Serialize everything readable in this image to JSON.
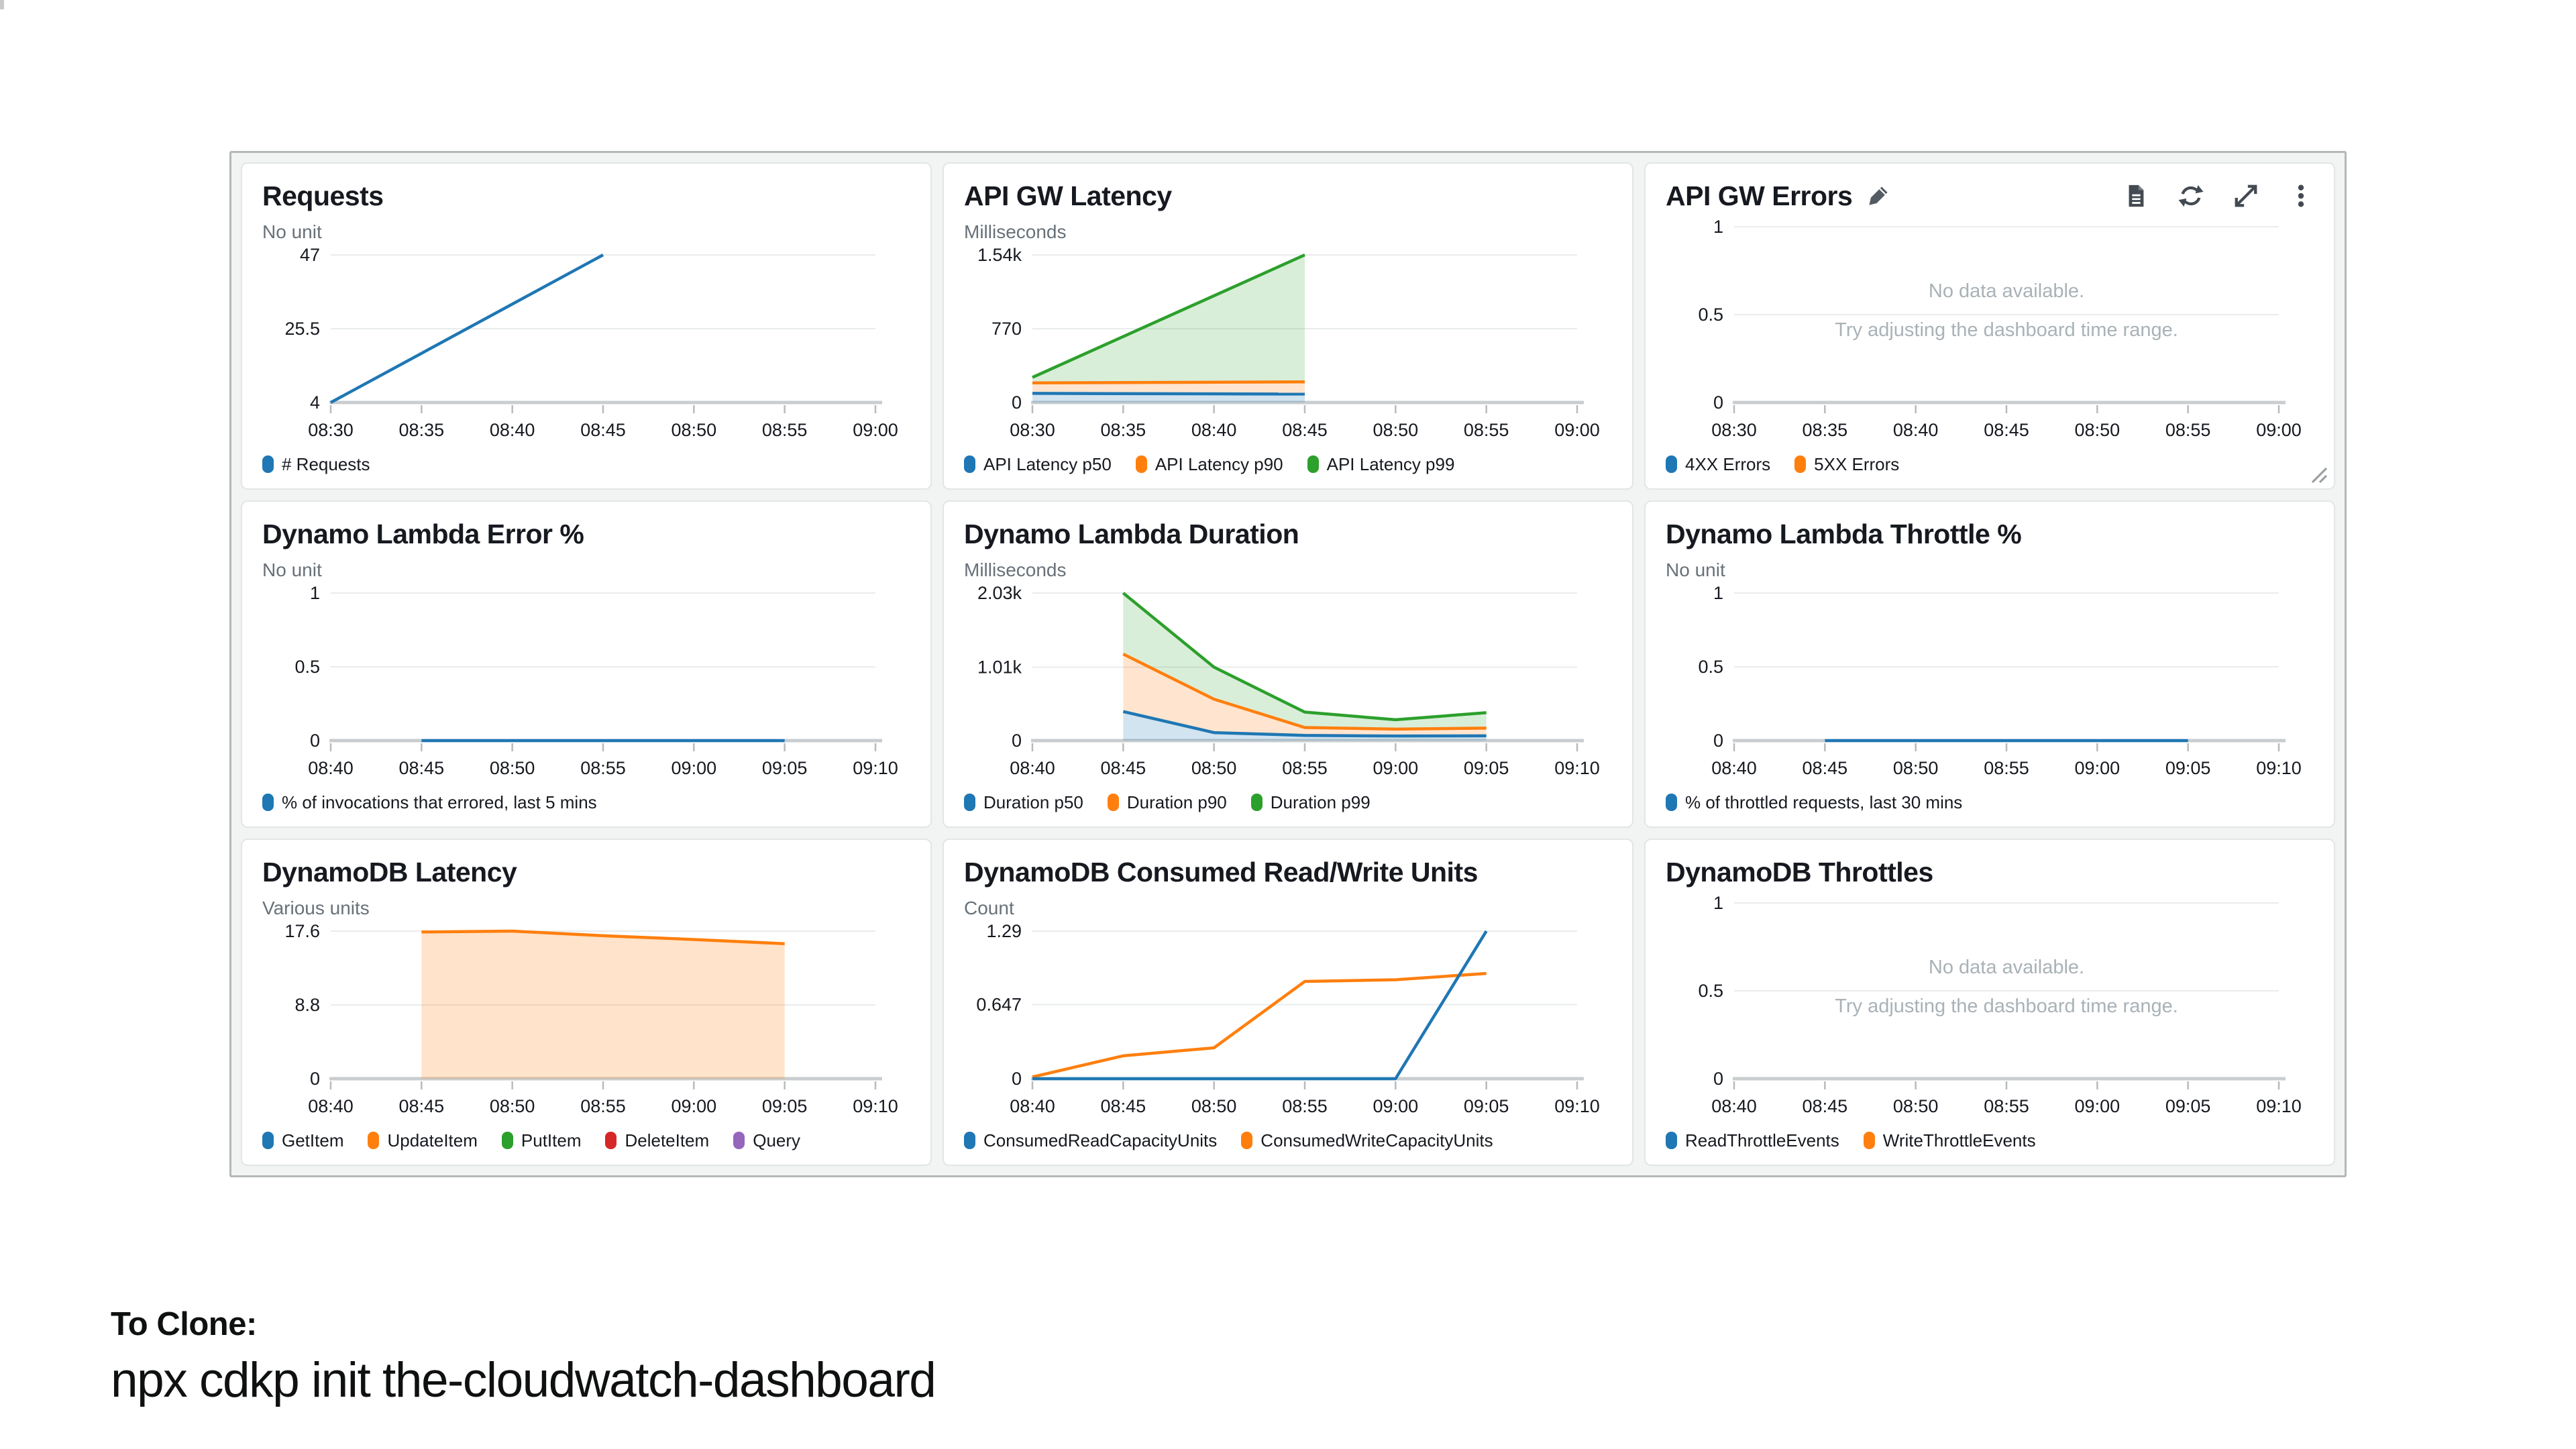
{
  "page": {
    "clone_heading": "To Clone:",
    "clone_command": "npx cdkp init the-cloudwatch-dashboard"
  },
  "colors": {
    "series_blue": "#1f77b4",
    "series_orange": "#ff7f0e",
    "series_green": "#2ca02c",
    "series_red": "#d62728",
    "series_purple": "#9467bd",
    "dashboard_background": "#f2f3f3",
    "panel_background": "#ffffff"
  },
  "icons": [
    "pencil-icon",
    "document-icon",
    "refresh-icon",
    "expand-icon",
    "ellipsis-icon",
    "resize-handle"
  ],
  "panels": [
    {
      "title": "Requests",
      "unit": "No unit",
      "x_ticks": [
        "08:30",
        "08:35",
        "08:40",
        "08:45",
        "08:50",
        "08:55",
        "09:00"
      ],
      "ymin": 4,
      "ymax": 47,
      "y_ticks": [
        {
          "value": 4,
          "label": "4"
        },
        {
          "value": 25.5,
          "label": "25.5"
        },
        {
          "value": 47,
          "label": "47"
        }
      ],
      "series": [
        {
          "name": "# Requests",
          "color": "#1f77b4",
          "fill": "none",
          "fill_color": "none",
          "points": [
            [
              "08:30",
              4
            ],
            [
              "08:45",
              47
            ]
          ]
        }
      ],
      "legend": [
        {
          "label": "# Requests",
          "color": "#1f77b4"
        }
      ]
    },
    {
      "title": "API GW Latency",
      "unit": "Milliseconds",
      "x_ticks": [
        "08:30",
        "08:35",
        "08:40",
        "08:45",
        "08:50",
        "08:55",
        "09:00"
      ],
      "ymin": 0,
      "ymax": 1540,
      "y_ticks": [
        {
          "value": 0,
          "label": "0"
        },
        {
          "value": 770,
          "label": "770"
        },
        {
          "value": 1540,
          "label": "1.54k"
        }
      ],
      "series": [
        {
          "name": "API Latency p50",
          "color": "#1f77b4",
          "fill": "tozero",
          "fill_color": "rgba(31,119,180,0.20)",
          "points": [
            [
              "08:30",
              95
            ],
            [
              "08:45",
              88
            ]
          ]
        },
        {
          "name": "API Latency p90",
          "color": "#ff7f0e",
          "fill": "toprev",
          "fill_color": "rgba(255,127,14,0.20)",
          "points": [
            [
              "08:30",
              205
            ],
            [
              "08:45",
              215
            ]
          ]
        },
        {
          "name": "API Latency p99",
          "color": "#2ca02c",
          "fill": "toprev",
          "fill_color": "rgba(44,160,44,0.18)",
          "points": [
            [
              "08:30",
              262
            ],
            [
              "08:45",
              1540
            ]
          ]
        }
      ],
      "legend": [
        {
          "label": "API Latency p50",
          "color": "#1f77b4"
        },
        {
          "label": "API Latency p90",
          "color": "#ff7f0e"
        },
        {
          "label": "API Latency p99",
          "color": "#2ca02c"
        }
      ]
    },
    {
      "title": "API GW Errors",
      "unit": "",
      "x_ticks": [
        "08:30",
        "08:35",
        "08:40",
        "08:45",
        "08:50",
        "08:55",
        "09:00"
      ],
      "ymin": 0,
      "ymax": 1,
      "y_ticks": [
        {
          "value": 0,
          "label": "0"
        },
        {
          "value": 0.5,
          "label": "0.5"
        },
        {
          "value": 1,
          "label": "1"
        }
      ],
      "series": [],
      "no_data": {
        "line1": "No data available.",
        "line2": "Try adjusting the dashboard time range."
      },
      "legend": [
        {
          "label": "4XX Errors",
          "color": "#1f77b4"
        },
        {
          "label": "5XX Errors",
          "color": "#ff7f0e"
        }
      ]
    },
    {
      "title": "Dynamo Lambda Error %",
      "unit": "No unit",
      "x_ticks": [
        "08:40",
        "08:45",
        "08:50",
        "08:55",
        "09:00",
        "09:05",
        "09:10"
      ],
      "ymin": 0,
      "ymax": 1,
      "y_ticks": [
        {
          "value": 0,
          "label": "0"
        },
        {
          "value": 0.5,
          "label": "0.5"
        },
        {
          "value": 1,
          "label": "1"
        }
      ],
      "series": [
        {
          "name": "% of invocations that errored, last 5 mins",
          "color": "#1f77b4",
          "fill": "none",
          "fill_color": "none",
          "points": [
            [
              "08:45",
              0
            ],
            [
              "09:05",
              0
            ]
          ]
        }
      ],
      "legend": [
        {
          "label": "% of invocations that errored, last 5 mins",
          "color": "#1f77b4"
        }
      ]
    },
    {
      "title": "Dynamo Lambda Duration",
      "unit": "Milliseconds",
      "x_ticks": [
        "08:40",
        "08:45",
        "08:50",
        "08:55",
        "09:00",
        "09:05",
        "09:10"
      ],
      "ymin": 0,
      "ymax": 2030,
      "y_ticks": [
        {
          "value": 0,
          "label": "0"
        },
        {
          "value": 1010,
          "label": "1.01k"
        },
        {
          "value": 2030,
          "label": "2.03k"
        }
      ],
      "series": [
        {
          "name": "Duration p50",
          "color": "#1f77b4",
          "fill": "tozero",
          "fill_color": "rgba(31,119,180,0.20)",
          "points": [
            [
              "08:45",
              400
            ],
            [
              "08:50",
              110
            ],
            [
              "08:55",
              72
            ],
            [
              "09:00",
              63
            ],
            [
              "09:05",
              66
            ]
          ]
        },
        {
          "name": "Duration p90",
          "color": "#ff7f0e",
          "fill": "toprev",
          "fill_color": "rgba(255,127,14,0.20)",
          "points": [
            [
              "08:45",
              1190
            ],
            [
              "08:50",
              570
            ],
            [
              "08:55",
              180
            ],
            [
              "09:00",
              158
            ],
            [
              "09:05",
              172
            ]
          ]
        },
        {
          "name": "Duration p99",
          "color": "#2ca02c",
          "fill": "toprev",
          "fill_color": "rgba(44,160,44,0.18)",
          "points": [
            [
              "08:45",
              2030
            ],
            [
              "08:50",
              1010
            ],
            [
              "08:55",
              392
            ],
            [
              "09:00",
              287
            ],
            [
              "09:05",
              384
            ]
          ]
        }
      ],
      "legend": [
        {
          "label": "Duration p50",
          "color": "#1f77b4"
        },
        {
          "label": "Duration p90",
          "color": "#ff7f0e"
        },
        {
          "label": "Duration p99",
          "color": "#2ca02c"
        }
      ]
    },
    {
      "title": "Dynamo Lambda Throttle %",
      "unit": "No unit",
      "x_ticks": [
        "08:40",
        "08:45",
        "08:50",
        "08:55",
        "09:00",
        "09:05",
        "09:10"
      ],
      "ymin": 0,
      "ymax": 1,
      "y_ticks": [
        {
          "value": 0,
          "label": "0"
        },
        {
          "value": 0.5,
          "label": "0.5"
        },
        {
          "value": 1,
          "label": "1"
        }
      ],
      "series": [
        {
          "name": "% of throttled requests, last 30 mins",
          "color": "#1f77b4",
          "fill": "none",
          "fill_color": "none",
          "points": [
            [
              "08:45",
              0
            ],
            [
              "09:05",
              0
            ]
          ]
        }
      ],
      "legend": [
        {
          "label": "% of throttled requests, last 30 mins",
          "color": "#1f77b4"
        }
      ]
    },
    {
      "title": "DynamoDB Latency",
      "unit": "Various units",
      "x_ticks": [
        "08:40",
        "08:45",
        "08:50",
        "08:55",
        "09:00",
        "09:05",
        "09:10"
      ],
      "ymin": 0,
      "ymax": 17.6,
      "y_ticks": [
        {
          "value": 0,
          "label": "0"
        },
        {
          "value": 8.8,
          "label": "8.8"
        },
        {
          "value": 17.6,
          "label": "17.6"
        }
      ],
      "series": [
        {
          "name": "UpdateItem",
          "color": "#ff7f0e",
          "fill": "tozero",
          "fill_color": "rgba(255,127,14,0.22)",
          "points": [
            [
              "08:45",
              17.5
            ],
            [
              "08:50",
              17.6
            ],
            [
              "08:55",
              17.05
            ],
            [
              "09:00",
              16.6
            ],
            [
              "09:05",
              16.1
            ]
          ]
        }
      ],
      "legend": [
        {
          "label": "GetItem",
          "color": "#1f77b4"
        },
        {
          "label": "UpdateItem",
          "color": "#ff7f0e"
        },
        {
          "label": "PutItem",
          "color": "#2ca02c"
        },
        {
          "label": "DeleteItem",
          "color": "#d62728"
        },
        {
          "label": "Query",
          "color": "#9467bd"
        }
      ]
    },
    {
      "title": "DynamoDB Consumed Read/Write Units",
      "unit": "Count",
      "x_ticks": [
        "08:40",
        "08:45",
        "08:50",
        "08:55",
        "09:00",
        "09:05",
        "09:10"
      ],
      "ymin": 0,
      "ymax": 1.29,
      "y_ticks": [
        {
          "value": 0,
          "label": "0"
        },
        {
          "value": 0.647,
          "label": "0.647"
        },
        {
          "value": 1.29,
          "label": "1.29"
        }
      ],
      "series": [
        {
          "name": "ConsumedWriteCapacityUnits",
          "color": "#ff7f0e",
          "fill": "none",
          "fill_color": "none",
          "points": [
            [
              "08:40",
              0.015
            ],
            [
              "08:45",
              0.2
            ],
            [
              "08:50",
              0.27
            ],
            [
              "08:55",
              0.85
            ],
            [
              "09:00",
              0.865
            ],
            [
              "09:05",
              0.92
            ]
          ]
        },
        {
          "name": "ConsumedReadCapacityUnits",
          "color": "#1f77b4",
          "fill": "none",
          "fill_color": "none",
          "points": [
            [
              "08:40",
              0
            ],
            [
              "08:45",
              0
            ],
            [
              "08:50",
              0
            ],
            [
              "08:55",
              0
            ],
            [
              "09:00",
              0
            ],
            [
              "09:05",
              1.29
            ]
          ]
        }
      ],
      "legend": [
        {
          "label": "ConsumedReadCapacityUnits",
          "color": "#1f77b4"
        },
        {
          "label": "ConsumedWriteCapacityUnits",
          "color": "#ff7f0e"
        }
      ]
    },
    {
      "title": "DynamoDB Throttles",
      "unit": "",
      "x_ticks": [
        "08:40",
        "08:45",
        "08:50",
        "08:55",
        "09:00",
        "09:05",
        "09:10"
      ],
      "ymin": 0,
      "ymax": 1,
      "y_ticks": [
        {
          "value": 0,
          "label": "0"
        },
        {
          "value": 0.5,
          "label": "0.5"
        },
        {
          "value": 1,
          "label": "1"
        }
      ],
      "series": [],
      "no_data": {
        "line1": "No data available.",
        "line2": "Try adjusting the dashboard time range."
      },
      "legend": [
        {
          "label": "ReadThrottleEvents",
          "color": "#1f77b4"
        },
        {
          "label": "WriteThrottleEvents",
          "color": "#ff7f0e"
        }
      ]
    }
  ],
  "chart_data": [
    {
      "type": "line",
      "title": "Requests",
      "ylabel": "No unit",
      "x": [
        "08:30",
        "08:45"
      ],
      "series": [
        {
          "name": "# Requests",
          "values": [
            4,
            47
          ]
        }
      ],
      "ylim": [
        4,
        47
      ],
      "x_range": [
        "08:30",
        "09:00"
      ],
      "grid": true,
      "legend_position": "bottom"
    },
    {
      "type": "area",
      "title": "API GW Latency",
      "ylabel": "Milliseconds",
      "x": [
        "08:30",
        "08:45"
      ],
      "series": [
        {
          "name": "API Latency p50",
          "values": [
            95,
            88
          ]
        },
        {
          "name": "API Latency p90",
          "values": [
            205,
            215
          ]
        },
        {
          "name": "API Latency p99",
          "values": [
            262,
            1540
          ]
        }
      ],
      "ylim": [
        0,
        1540
      ],
      "x_range": [
        "08:30",
        "09:00"
      ],
      "grid": true,
      "legend_position": "bottom"
    },
    {
      "type": "line",
      "title": "API GW Errors",
      "series": [
        {
          "name": "4XX Errors",
          "values": []
        },
        {
          "name": "5XX Errors",
          "values": []
        }
      ],
      "ylim": [
        0,
        1
      ],
      "x_range": [
        "08:30",
        "09:00"
      ],
      "annotations": [
        "No data available.",
        "Try adjusting the dashboard time range."
      ],
      "grid": true,
      "legend_position": "bottom"
    },
    {
      "type": "line",
      "title": "Dynamo Lambda Error %",
      "ylabel": "No unit",
      "x": [
        "08:45",
        "09:05"
      ],
      "series": [
        {
          "name": "% of invocations that errored, last 5 mins",
          "values": [
            0,
            0
          ]
        }
      ],
      "ylim": [
        0,
        1
      ],
      "x_range": [
        "08:40",
        "09:10"
      ],
      "grid": true,
      "legend_position": "bottom"
    },
    {
      "type": "area",
      "title": "Dynamo Lambda Duration",
      "ylabel": "Milliseconds",
      "x": [
        "08:45",
        "08:50",
        "08:55",
        "09:00",
        "09:05"
      ],
      "series": [
        {
          "name": "Duration p50",
          "values": [
            400,
            110,
            72,
            63,
            66
          ]
        },
        {
          "name": "Duration p90",
          "values": [
            1190,
            570,
            180,
            158,
            172
          ]
        },
        {
          "name": "Duration p99",
          "values": [
            2030,
            1010,
            392,
            287,
            384
          ]
        }
      ],
      "ylim": [
        0,
        2030
      ],
      "x_range": [
        "08:40",
        "09:10"
      ],
      "grid": true,
      "legend_position": "bottom"
    },
    {
      "type": "line",
      "title": "Dynamo Lambda Throttle %",
      "ylabel": "No unit",
      "x": [
        "08:45",
        "09:05"
      ],
      "series": [
        {
          "name": "% of throttled requests, last 30 mins",
          "values": [
            0,
            0
          ]
        }
      ],
      "ylim": [
        0,
        1
      ],
      "x_range": [
        "08:40",
        "09:10"
      ],
      "grid": true,
      "legend_position": "bottom"
    },
    {
      "type": "area",
      "title": "DynamoDB Latency",
      "ylabel": "Various units",
      "x": [
        "08:45",
        "08:50",
        "08:55",
        "09:00",
        "09:05"
      ],
      "series": [
        {
          "name": "UpdateItem",
          "values": [
            17.5,
            17.6,
            17.05,
            16.6,
            16.1
          ]
        },
        {
          "name": "GetItem",
          "values": []
        },
        {
          "name": "PutItem",
          "values": []
        },
        {
          "name": "DeleteItem",
          "values": []
        },
        {
          "name": "Query",
          "values": []
        }
      ],
      "ylim": [
        0,
        17.6
      ],
      "x_range": [
        "08:40",
        "09:10"
      ],
      "grid": true,
      "legend_position": "bottom"
    },
    {
      "type": "line",
      "title": "DynamoDB Consumed Read/Write Units",
      "ylabel": "Count",
      "x": [
        "08:40",
        "08:45",
        "08:50",
        "08:55",
        "09:00",
        "09:05"
      ],
      "series": [
        {
          "name": "ConsumedReadCapacityUnits",
          "values": [
            0,
            0,
            0,
            0,
            0,
            1.29
          ]
        },
        {
          "name": "ConsumedWriteCapacityUnits",
          "values": [
            0.015,
            0.2,
            0.27,
            0.85,
            0.865,
            0.92
          ]
        }
      ],
      "ylim": [
        0,
        1.29
      ],
      "x_range": [
        "08:40",
        "09:10"
      ],
      "grid": true,
      "legend_position": "bottom"
    },
    {
      "type": "line",
      "title": "DynamoDB Throttles",
      "series": [
        {
          "name": "ReadThrottleEvents",
          "values": []
        },
        {
          "name": "WriteThrottleEvents",
          "values": []
        }
      ],
      "ylim": [
        0,
        1
      ],
      "x_range": [
        "08:40",
        "09:10"
      ],
      "annotations": [
        "No data available.",
        "Try adjusting the dashboard time range."
      ],
      "grid": true,
      "legend_position": "bottom"
    }
  ]
}
